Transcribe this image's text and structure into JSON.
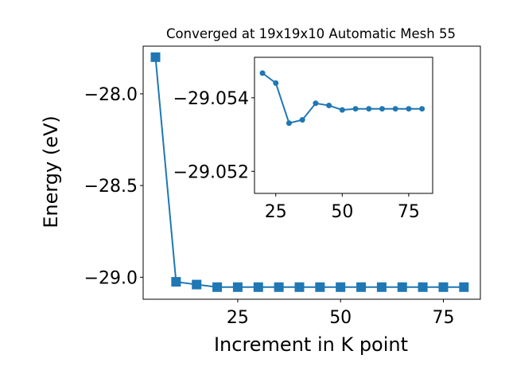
{
  "chart_data": [
    {
      "type": "line",
      "title": "Converged at 19x19x10 Automatic Mesh 55",
      "xlabel": "Increment in K point",
      "ylabel": "Energy (eV)",
      "xlim": [
        2,
        84
      ],
      "ylim": [
        -29.12,
        -27.74
      ],
      "xticks": [
        25,
        50,
        75
      ],
      "xtick_labels": [
        "25",
        "50",
        "75"
      ],
      "yticks": [
        -28.0,
        -28.5,
        -29.0
      ],
      "ytick_labels": [
        "−28.0",
        "−28.5",
        "−29.0"
      ],
      "grid": false,
      "marker": "square",
      "color": "#1f77b4",
      "series": [
        {
          "x": [
            5,
            10,
            15,
            20,
            25,
            30,
            35,
            40,
            45,
            50,
            55,
            60,
            65,
            70,
            75,
            80
          ],
          "values": [
            -27.8,
            -29.025,
            -29.04,
            -29.054,
            -29.054,
            -29.054,
            -29.054,
            -29.054,
            -29.054,
            -29.054,
            -29.054,
            -29.054,
            -29.054,
            -29.054,
            -29.054,
            -29.054
          ]
        }
      ]
    },
    {
      "type": "line",
      "role": "inset",
      "xlim": [
        17,
        84
      ],
      "ylim": [
        -29.0514,
        -29.0551
      ],
      "xticks": [
        25,
        50,
        75
      ],
      "xtick_labels": [
        "25",
        "50",
        "75"
      ],
      "yticks": [
        -29.054,
        -29.052
      ],
      "ytick_labels": [
        "−29.054",
        "−29.052"
      ],
      "grid": false,
      "marker": "circle",
      "color": "#1f77b4",
      "series": [
        {
          "x": [
            20,
            25,
            30,
            35,
            40,
            45,
            50,
            55,
            60,
            65,
            70,
            75,
            80
          ],
          "values": [
            -29.05467,
            -29.0544,
            -29.05331,
            -29.0534,
            -29.05385,
            -29.05379,
            -29.05367,
            -29.0537,
            -29.0537,
            -29.0537,
            -29.0537,
            -29.0537,
            -29.0537
          ]
        }
      ]
    }
  ]
}
